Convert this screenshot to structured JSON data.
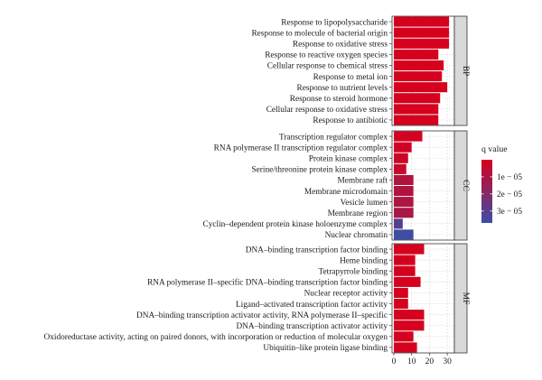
{
  "chart_data": {
    "type": "bar",
    "orientation": "horizontal",
    "x_ticks": [
      0,
      10,
      20,
      30
    ],
    "xlim": [
      -1,
      34
    ],
    "grid": true,
    "panels": [
      {
        "name": "BP",
        "categories": [
          "Response to lipopolysaccharide",
          "Response to molecule of bacterial origin",
          "Response to oxidative stress",
          "Response to reactive oxygen species",
          "Cellular response to chemical stress",
          "Response to metal ion",
          "Response to nutrient levels",
          "Response to steroid hormone",
          "Cellular response to oxidative stress",
          "Response to antibiotic"
        ],
        "values": [
          31,
          31,
          31,
          25,
          28,
          27,
          30,
          26,
          25,
          25
        ],
        "q_values": [
          2e-07,
          2e-07,
          3e-07,
          4e-07,
          3e-07,
          4e-07,
          3e-07,
          5e-07,
          5e-07,
          5e-07
        ]
      },
      {
        "name": "CC",
        "categories": [
          "Transcription regulator complex",
          "RNA polymerase II transcription regulator complex",
          "Protein kinase complex",
          "Serine/threonine protein kinase complex",
          "Membrane raft",
          "Membrane microdomain",
          "Vesicle lumen",
          "Membrane region",
          "Cyclin–dependent protein kinase holoenzyme complex",
          "Nuclear chromatin"
        ],
        "values": [
          16,
          10,
          8,
          7,
          11,
          11,
          11,
          11,
          5,
          11
        ],
        "q_values": [
          1e-06,
          2e-06,
          3e-06,
          4e-06,
          9e-06,
          9e-06,
          1e-05,
          1.1e-05,
          3e-05,
          3.6e-05
        ]
      },
      {
        "name": "MF",
        "categories": [
          "DNA–binding transcription factor binding",
          "Heme binding",
          "Tetrapyrrole binding",
          "RNA polymerase II–specific DNA–binding transcription factor binding",
          "Nuclear receptor activity",
          "Ligand–activated transcription factor activity",
          "DNA–binding transcription activator activity, RNA polymerase II–specific",
          "DNA–binding transcription activator activity",
          "Oxidoreductase activity, acting on paired donors, with incorporation or reduction of molecular oxygen",
          "Ubiquitin–like protein ligase binding"
        ],
        "values": [
          17,
          12,
          12,
          15,
          8,
          8,
          17,
          17,
          11,
          13
        ],
        "q_values": [
          5e-07,
          6e-07,
          6e-07,
          5e-07,
          7e-07,
          7e-07,
          5e-07,
          5e-07,
          8e-07,
          6e-07
        ]
      }
    ],
    "legend": {
      "title": "q value",
      "position": "right",
      "ticks": [
        1e-05,
        2e-05,
        3e-05
      ],
      "tick_labels": [
        "1e − 05",
        "2e − 05",
        "3e − 05"
      ],
      "range": [
        0,
        3.7e-05
      ],
      "color_low_q": "#d7001c",
      "color_high_q": "#3a4ea8"
    }
  }
}
